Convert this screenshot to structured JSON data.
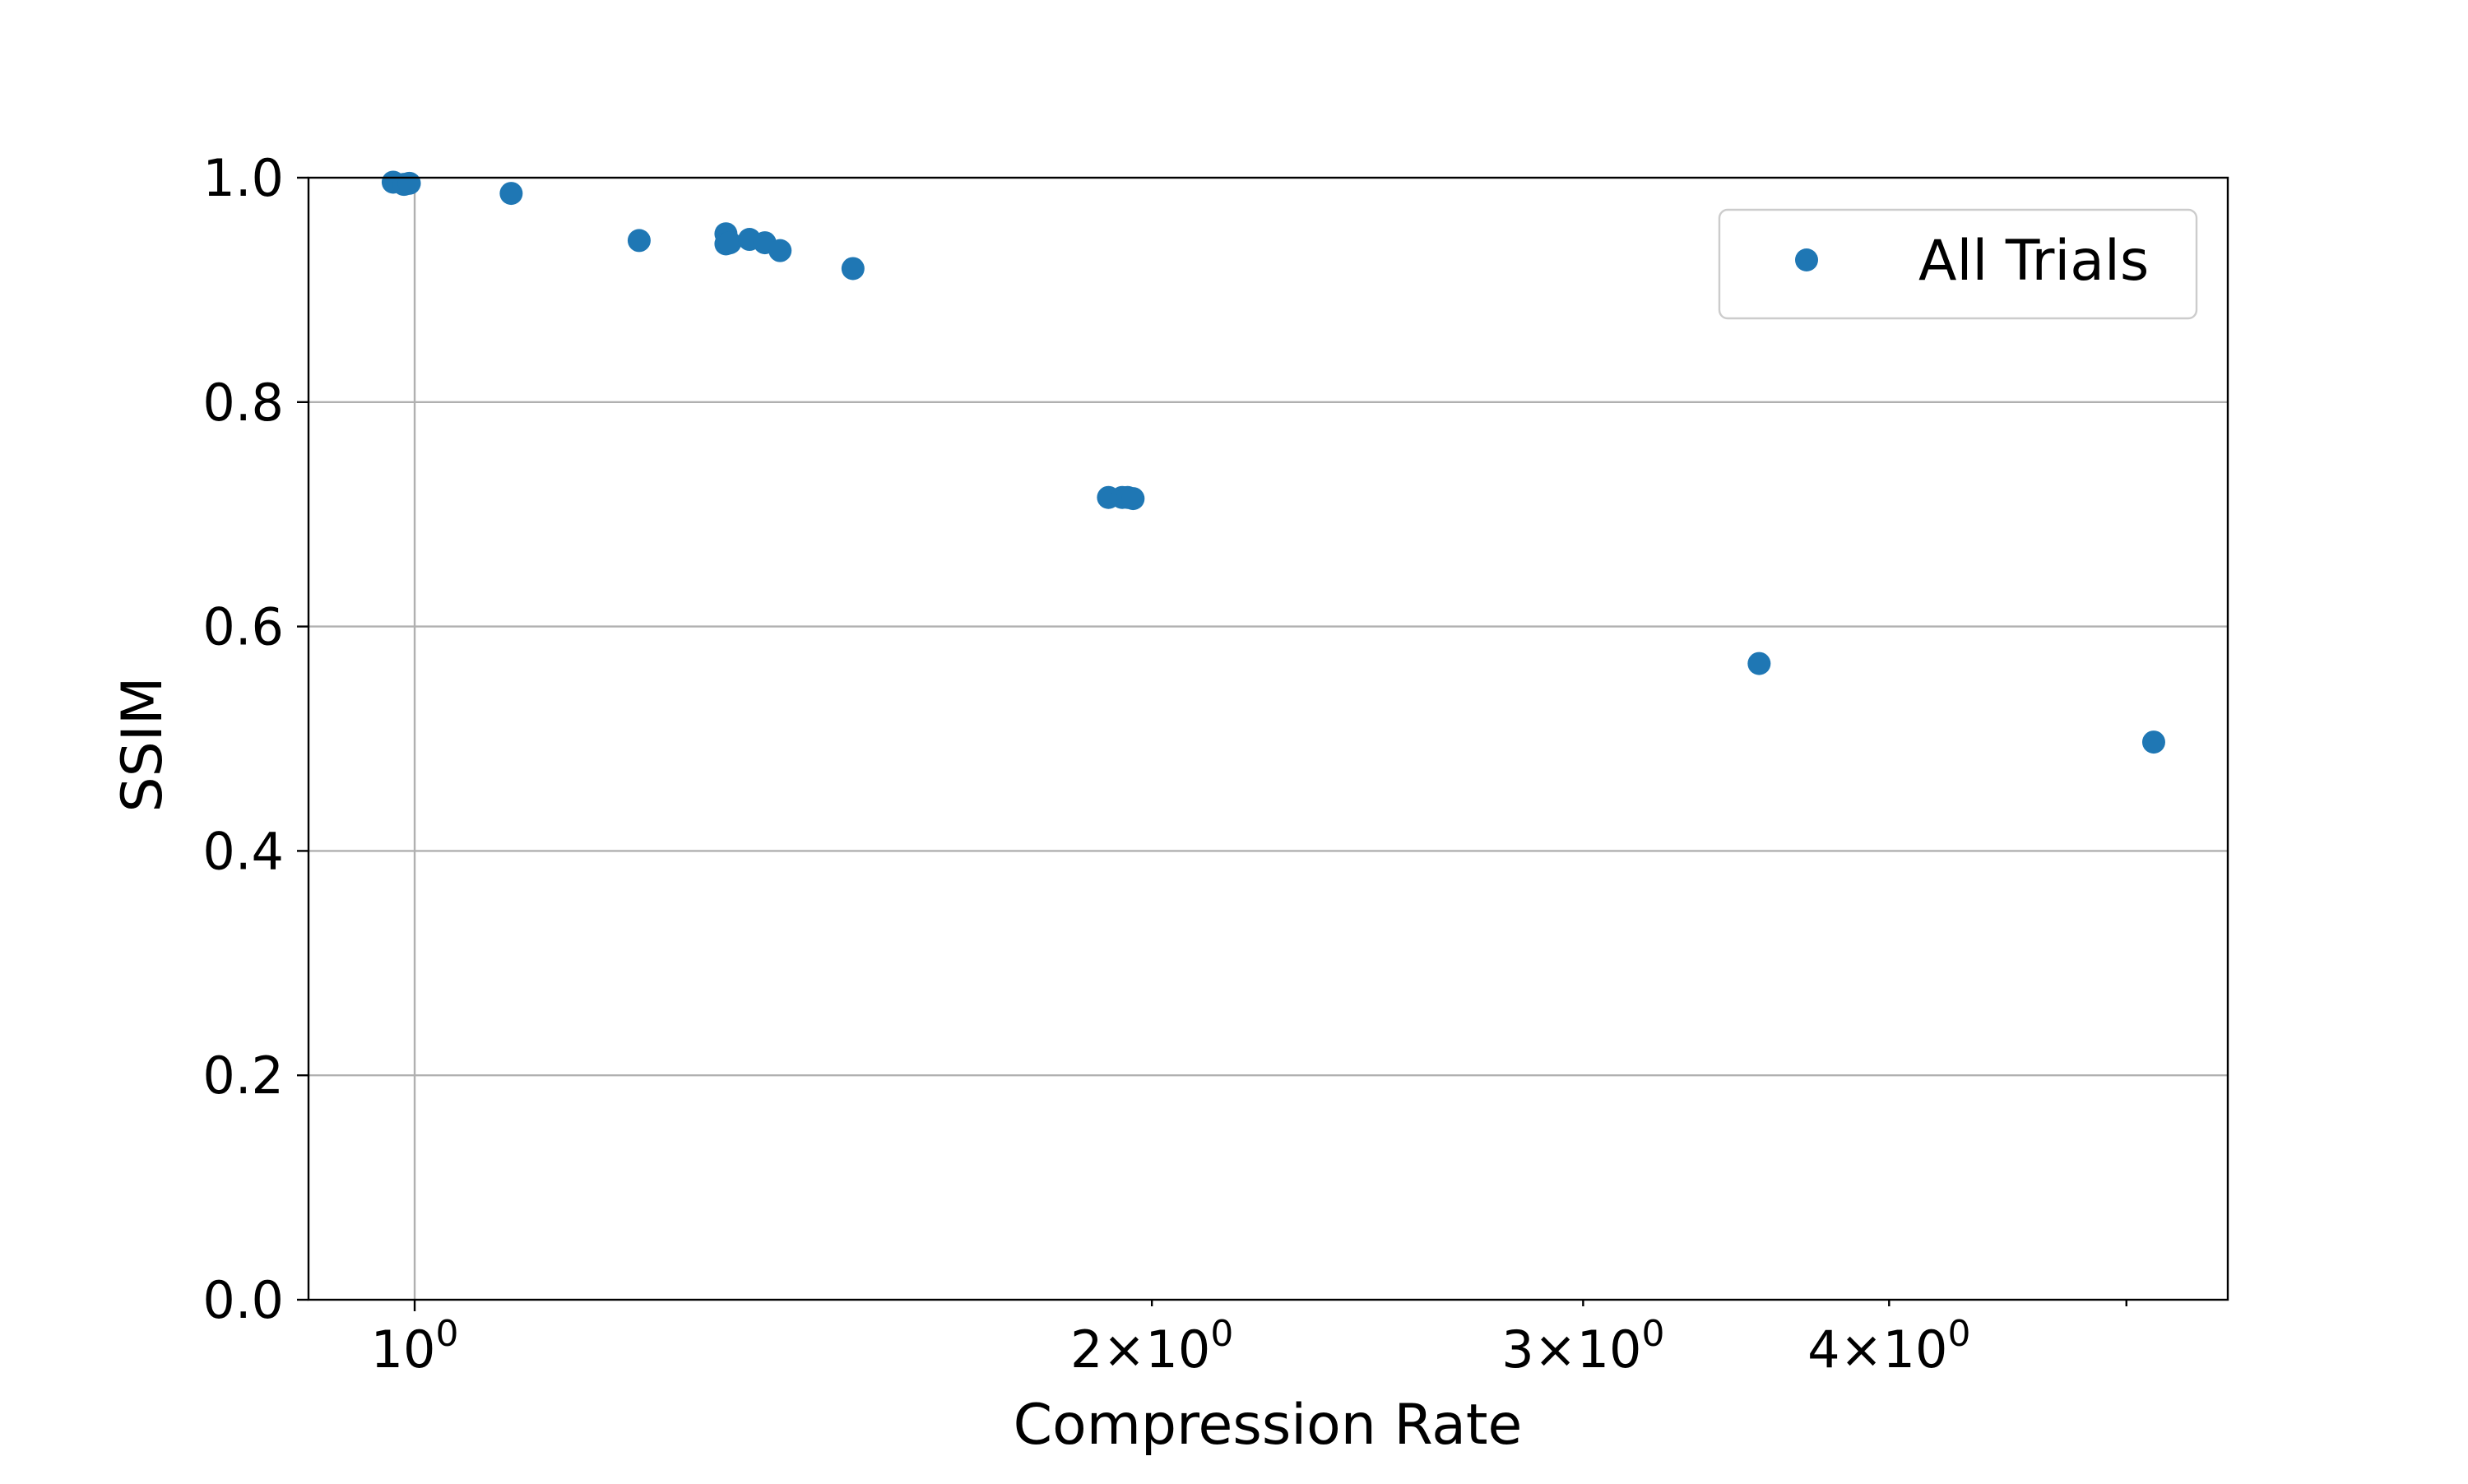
{
  "chart_data": {
    "type": "scatter",
    "title": "",
    "xlabel": "Compression Rate",
    "ylabel": "SSIM",
    "x_scale": "log",
    "xlim": [
      0.905,
      5.5
    ],
    "ylim": [
      0.0,
      1.0
    ],
    "grid": true,
    "legend_position": "top-right",
    "x_ticks": [
      {
        "value": 1,
        "base": "10",
        "exp": "0",
        "mult": ""
      },
      {
        "value": 2,
        "base": "10",
        "exp": "0",
        "mult": "2×"
      },
      {
        "value": 3,
        "base": "10",
        "exp": "0",
        "mult": "3×"
      },
      {
        "value": 4,
        "base": "10",
        "exp": "0",
        "mult": "4×"
      }
    ],
    "x_minor_ticks": [
      5
    ],
    "y_ticks": [
      {
        "value": 0.0,
        "label": "0.0"
      },
      {
        "value": 0.2,
        "label": "0.2"
      },
      {
        "value": 0.4,
        "label": "0.4"
      },
      {
        "value": 0.6,
        "label": "0.6"
      },
      {
        "value": 0.8,
        "label": "0.8"
      },
      {
        "value": 1.0,
        "label": "1.0"
      }
    ],
    "series": [
      {
        "name": "All Trials",
        "color": "#1f77b4",
        "points": [
          {
            "x": 0.98,
            "y": 0.996
          },
          {
            "x": 0.99,
            "y": 0.994
          },
          {
            "x": 0.995,
            "y": 0.995
          },
          {
            "x": 1.095,
            "y": 0.986
          },
          {
            "x": 1.235,
            "y": 0.944
          },
          {
            "x": 1.34,
            "y": 0.95
          },
          {
            "x": 1.34,
            "y": 0.941
          },
          {
            "x": 1.345,
            "y": 0.942
          },
          {
            "x": 1.37,
            "y": 0.945
          },
          {
            "x": 1.39,
            "y": 0.942
          },
          {
            "x": 1.41,
            "y": 0.935
          },
          {
            "x": 1.51,
            "y": 0.919
          },
          {
            "x": 1.92,
            "y": 0.715
          },
          {
            "x": 1.945,
            "y": 0.715
          },
          {
            "x": 1.955,
            "y": 0.715
          },
          {
            "x": 1.965,
            "y": 0.714
          },
          {
            "x": 3.54,
            "y": 0.567
          },
          {
            "x": 5.13,
            "y": 0.497
          }
        ]
      }
    ]
  }
}
